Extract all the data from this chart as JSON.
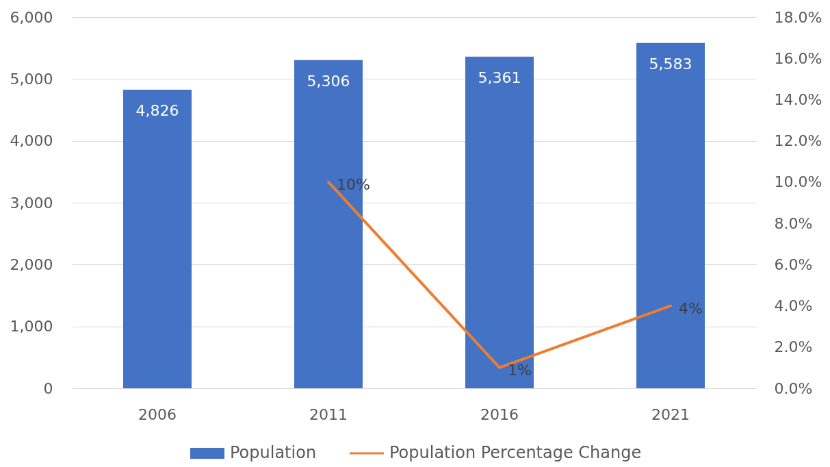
{
  "chart_data": {
    "type": "bar",
    "categories": [
      "2006",
      "2011",
      "2016",
      "2021"
    ],
    "series": [
      {
        "name": "Population",
        "type": "bar",
        "color": "#4472c4",
        "values": [
          4826,
          5306,
          5361,
          5583
        ],
        "value_labels": [
          "4,826",
          "5,306",
          "5,361",
          "5,583"
        ]
      },
      {
        "name": "Population Percentage Change",
        "type": "line",
        "axis": "y2",
        "color": "#ed7d31",
        "values": [
          null,
          10,
          1,
          4
        ],
        "value_labels": [
          null,
          "10%",
          "1%",
          "4%"
        ]
      }
    ],
    "ylim": [
      0,
      6000
    ],
    "yticks": [
      0,
      {
        "value": 1000,
        "label": "1,000"
      },
      {
        "value": 2000,
        "label": "2,000"
      },
      {
        "value": 3000,
        "label": "3,000"
      },
      {
        "value": 4000,
        "label": "4,000"
      },
      {
        "value": 5000,
        "label": "5,000"
      },
      {
        "value": 6000,
        "label": "6,000"
      }
    ],
    "y2lim": [
      0,
      18
    ],
    "y2ticks": [
      {
        "value": 0,
        "label": "0.0%"
      },
      {
        "value": 2,
        "label": "2.0%"
      },
      {
        "value": 4,
        "label": "4.0%"
      },
      {
        "value": 6,
        "label": "6.0%"
      },
      {
        "value": 8,
        "label": "8.0%"
      },
      {
        "value": 10,
        "label": "10.0%"
      },
      {
        "value": 12,
        "label": "12.0%"
      },
      {
        "value": 14,
        "label": "14.0%"
      },
      {
        "value": 16,
        "label": "16.0%"
      },
      {
        "value": 18,
        "label": "18.0%"
      }
    ],
    "grid": "y",
    "legend": "bottom"
  }
}
